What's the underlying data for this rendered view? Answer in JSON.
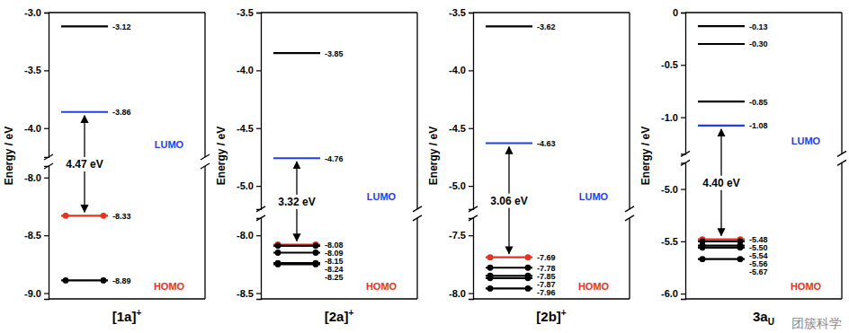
{
  "chart_data": [
    {
      "type": "energy_level",
      "x_label": "[1a]+",
      "y_label": "Energy / eV",
      "y_segments": [
        {
          "ylim": [
            -4.25,
            -3.0
          ],
          "yticks": [
            {
              "value": -4,
              "label": "-4.0"
            },
            -3.5,
            {
              "value": -3,
              "label": "-3.0"
            }
          ]
        },
        {
          "ylim": [
            -9.05,
            -7.9
          ],
          "yticks": [
            {
              "value": -9,
              "label": "-9.0"
            },
            -8.5,
            {
              "value": -8,
              "label": "-8.0"
            }
          ]
        }
      ],
      "series": [
        {
          "color": "#000000",
          "values": [
            -3.12
          ],
          "value_labels": [
            "-3.12"
          ]
        },
        {
          "name": "LUMO",
          "color": "#1f3ff0",
          "values": [
            -3.86
          ],
          "value_labels": [
            "-3.86"
          ]
        },
        {
          "name": "HOMO",
          "color": "#e8321e",
          "marker": "circle",
          "values": [
            -8.33
          ],
          "value_labels": [
            "-8.33"
          ]
        },
        {
          "color": "#000000",
          "marker": "circle",
          "values": [
            -8.89
          ],
          "value_labels": [
            "-8.89"
          ]
        }
      ],
      "data_labels": true,
      "annotations": [
        "4.47 eV"
      ]
    },
    {
      "type": "energy_level",
      "x_label": "[2a]+",
      "y_label": "Energy / eV",
      "y_segments": [
        {
          "ylim": [
            -5.2,
            -3.5
          ],
          "yticks": [
            {
              "value": -5,
              "label": "-5.0"
            },
            -4.5,
            {
              "value": -4,
              "label": "-4.0"
            },
            -3.5
          ]
        },
        {
          "ylim": [
            -8.55,
            -7.85
          ],
          "yticks": [
            -8.5,
            {
              "value": -8,
              "label": "-8.0"
            }
          ]
        }
      ],
      "series": [
        {
          "color": "#000000",
          "values": [
            -3.85
          ],
          "value_labels": [
            "-3.85"
          ]
        },
        {
          "name": "LUMO",
          "color": "#1f3ff0",
          "values": [
            -4.76
          ],
          "value_labels": [
            "-4.76"
          ]
        },
        {
          "name": "HOMO",
          "color": "#e8321e",
          "marker": "circle",
          "values": [
            -8.08
          ],
          "value_labels": [
            "-8.08"
          ]
        },
        {
          "color": "#000000",
          "marker": "circle",
          "values": [
            -8.09,
            -8.15,
            -8.24,
            -8.25
          ],
          "value_labels": [
            "-8.09",
            "-8.15",
            "-8.24",
            "-8.25"
          ]
        }
      ],
      "data_labels": true,
      "annotations": [
        "3.32 eV"
      ]
    },
    {
      "type": "energy_level",
      "x_label": "[2b]+",
      "y_label": "Energy / eV",
      "y_segments": [
        {
          "ylim": [
            -5.2,
            -3.5
          ],
          "yticks": [
            {
              "value": -5,
              "label": "-5.0"
            },
            -4.5,
            {
              "value": -4,
              "label": "-4.0"
            },
            -3.5
          ]
        },
        {
          "ylim": [
            -8.05,
            -7.35
          ],
          "yticks": [
            {
              "value": -8,
              "label": "-8.0"
            },
            -7.5
          ]
        }
      ],
      "series": [
        {
          "color": "#000000",
          "values": [
            -3.62
          ],
          "value_labels": [
            "-3.62"
          ]
        },
        {
          "name": "LUMO",
          "color": "#1f3ff0",
          "values": [
            -4.63
          ],
          "value_labels": [
            "-4.63"
          ]
        },
        {
          "name": "HOMO",
          "color": "#e8321e",
          "marker": "circle",
          "values": [
            -7.69
          ],
          "value_labels": [
            "-7.69"
          ]
        },
        {
          "color": "#000000",
          "marker": "circle",
          "values": [
            -7.78,
            -7.85,
            -7.87,
            -7.96
          ],
          "value_labels": [
            "-7.78",
            "-7.85",
            "-7.87",
            "-7.96"
          ]
        }
      ],
      "data_labels": true,
      "annotations": [
        "3.06 eV"
      ]
    },
    {
      "type": "energy_level",
      "x_label": "3aU",
      "y_label": "Energy / eV",
      "y_segments": [
        {
          "ylim": [
            -1.35,
            0
          ],
          "yticks": [
            {
              "value": -1,
              "label": "-1.0"
            },
            -0.5,
            0
          ]
        },
        {
          "ylim": [
            -6.05,
            -4.75
          ],
          "yticks": [
            {
              "value": -6,
              "label": "-6.0"
            },
            -5.5,
            {
              "value": -5,
              "label": "-5.0"
            }
          ]
        }
      ],
      "series": [
        {
          "color": "#000000",
          "values": [
            -0.13,
            -0.3,
            -0.85
          ],
          "value_labels": [
            "-0.13",
            "-0.30",
            "-0.85"
          ]
        },
        {
          "name": "LUMO",
          "color": "#1f3ff0",
          "values": [
            -1.08
          ],
          "value_labels": [
            "-1.08"
          ]
        },
        {
          "name": "HOMO",
          "color": "#e8321e",
          "marker": "circle",
          "values": [
            -5.48
          ],
          "value_labels": [
            "-5.48"
          ]
        },
        {
          "color": "#000000",
          "marker": "circle",
          "values": [
            -5.5,
            -5.54,
            -5.56,
            -5.67
          ],
          "value_labels": [
            "-5.50",
            "-5.54",
            "-5.56",
            "-5.67"
          ]
        }
      ],
      "data_labels": true,
      "annotations": [
        "4.40 eV"
      ]
    }
  ],
  "watermark": "团簇科学"
}
